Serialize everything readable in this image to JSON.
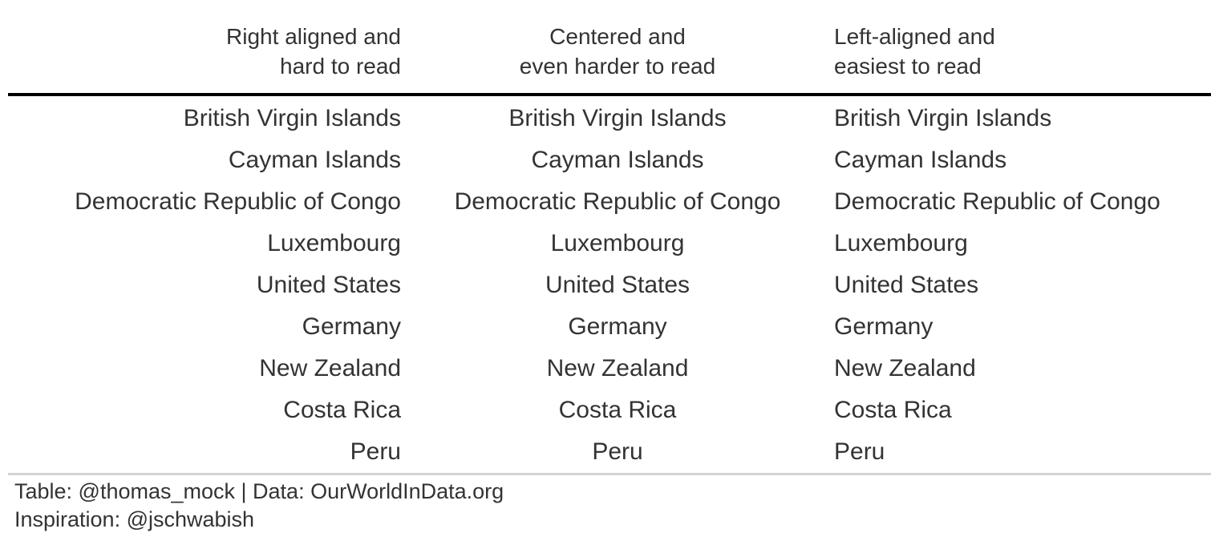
{
  "chart_data": {
    "type": "table",
    "columns": [
      {
        "header_lines": [
          "Right aligned and",
          "hard to read"
        ],
        "align": "right"
      },
      {
        "header_lines": [
          "Centered and",
          "even harder to read"
        ],
        "align": "center"
      },
      {
        "header_lines": [
          "Left-aligned and",
          "easiest to read"
        ],
        "align": "left"
      }
    ],
    "rows": [
      [
        "British Virgin Islands",
        "British Virgin Islands",
        "British Virgin Islands"
      ],
      [
        "Cayman Islands",
        "Cayman Islands",
        "Cayman Islands"
      ],
      [
        "Democratic Republic of Congo",
        "Democratic Republic of Congo",
        "Democratic Republic of Congo"
      ],
      [
        "Luxembourg",
        "Luxembourg",
        "Luxembourg"
      ],
      [
        "United States",
        "United States",
        "United States"
      ],
      [
        "Germany",
        "Germany",
        "Germany"
      ],
      [
        "New Zealand",
        "New Zealand",
        "New Zealand"
      ],
      [
        "Costa Rica",
        "Costa Rica",
        "Costa Rica"
      ],
      [
        "Peru",
        "Peru",
        "Peru"
      ]
    ],
    "source_notes": [
      "Table: @thomas_mock | Data: OurWorldInData.org",
      "Inspiration: @jschwabish"
    ]
  }
}
